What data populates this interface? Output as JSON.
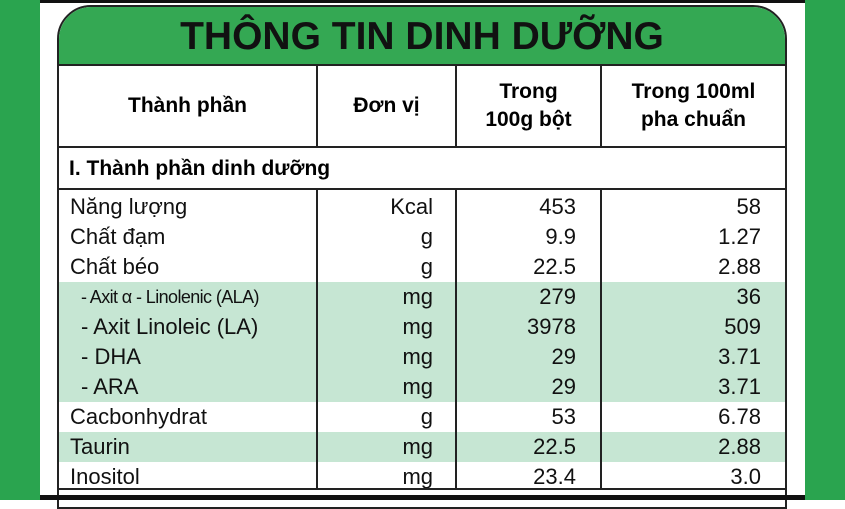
{
  "title": "THÔNG TIN DINH DƯỠNG",
  "columns": [
    "Thành phần",
    "Đơn vị",
    "Trong 100g bột",
    "Trong 100ml pha chuẩn"
  ],
  "section": "I. Thành phần dinh dưỡng",
  "rows": [
    {
      "name": "Năng lượng",
      "unit": "Kcal",
      "per100g": "453",
      "per100ml": "58",
      "highlighted": false
    },
    {
      "name": "Chất đạm",
      "unit": "g",
      "per100g": "9.9",
      "per100ml": "1.27",
      "highlighted": false
    },
    {
      "name": "Chất béo",
      "unit": "g",
      "per100g": "22.5",
      "per100ml": "2.88",
      "highlighted": false
    },
    {
      "name": "- Axit α - Linolenic (ALA)",
      "unit": "mg",
      "per100g": "279",
      "per100ml": "36",
      "highlighted": true
    },
    {
      "name": "- Axit Linoleic (LA)",
      "unit": "mg",
      "per100g": "3978",
      "per100ml": "509",
      "highlighted": true
    },
    {
      "name": "- DHA",
      "unit": "mg",
      "per100g": "29",
      "per100ml": "3.71",
      "highlighted": true
    },
    {
      "name": "- ARA",
      "unit": "mg",
      "per100g": "29",
      "per100ml": "3.71",
      "highlighted": true
    },
    {
      "name": "Cacbonhydrat",
      "unit": "g",
      "per100g": "53",
      "per100ml": "6.78",
      "highlighted": false
    },
    {
      "name": "Taurin",
      "unit": "mg",
      "per100g": "22.5",
      "per100ml": "2.88",
      "highlighted": true
    },
    {
      "name": "Inositol",
      "unit": "mg",
      "per100g": "23.4",
      "per100ml": "3.0",
      "highlighted": false
    }
  ],
  "colors": {
    "brand_green": "#34a853",
    "row_highlight": "#c6e6d3"
  }
}
